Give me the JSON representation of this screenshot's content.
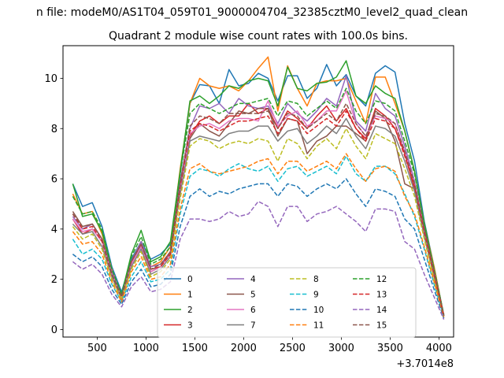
{
  "suptitle": "n file: modeM0/AS1T04_059T01_9000004704_32385cztM0_level2_quad_clean",
  "chart_data": {
    "type": "line",
    "title": "Quadrant 2 module wise count rates with 100.0s bins.",
    "xlabel": "",
    "ylabel": "",
    "x_offset_label": "+3.7014e8",
    "xlim": [
      150,
      4150
    ],
    "ylim": [
      -0.3,
      11.3
    ],
    "xticks": [
      500,
      1000,
      1500,
      2000,
      2500,
      3000,
      3500,
      4000
    ],
    "yticks": [
      0,
      2,
      4,
      6,
      8,
      10
    ],
    "grid": false,
    "legend_position": "lower-center",
    "x": [
      250,
      350,
      450,
      550,
      650,
      750,
      850,
      950,
      1050,
      1150,
      1250,
      1350,
      1450,
      1550,
      1650,
      1750,
      1850,
      1950,
      2050,
      2150,
      2250,
      2350,
      2450,
      2550,
      2650,
      2750,
      2850,
      2950,
      3050,
      3150,
      3250,
      3350,
      3450,
      3550,
      3650,
      3750,
      3850,
      3950,
      4050
    ],
    "series": [
      {
        "name": "0",
        "color": "#1f77b4",
        "dash": "solid",
        "values": [
          5.8,
          4.9,
          5.05,
          4.1,
          2.5,
          1.5,
          2.8,
          3.5,
          2.8,
          3.0,
          3.4,
          6.2,
          9.0,
          9.75,
          9.7,
          9.0,
          10.35,
          9.7,
          9.8,
          10.2,
          10.0,
          9.1,
          10.1,
          10.1,
          9.2,
          9.6,
          10.55,
          9.7,
          10.15,
          9.3,
          8.9,
          10.2,
          10.5,
          10.25,
          8.2,
          6.7,
          4.3,
          2.5,
          0.55
        ]
      },
      {
        "name": "1",
        "color": "#ff7f0e",
        "dash": "solid",
        "values": [
          5.4,
          4.6,
          4.7,
          3.8,
          2.4,
          1.3,
          2.7,
          3.5,
          2.5,
          2.7,
          3.3,
          6.4,
          9.0,
          10.0,
          9.7,
          9.6,
          9.7,
          9.5,
          9.9,
          10.4,
          10.85,
          8.7,
          10.5,
          9.6,
          8.9,
          9.8,
          9.9,
          9.9,
          10.0,
          9.1,
          8.2,
          10.05,
          10.05,
          9.0,
          7.9,
          6.3,
          4.2,
          2.5,
          0.55
        ]
      },
      {
        "name": "2",
        "color": "#2ca02c",
        "dash": "solid",
        "values": [
          5.8,
          4.5,
          4.6,
          3.9,
          2.3,
          1.4,
          3.0,
          3.95,
          2.7,
          2.9,
          3.5,
          6.3,
          9.1,
          9.3,
          9.0,
          9.3,
          9.7,
          9.6,
          9.9,
          10.0,
          9.9,
          8.9,
          10.45,
          9.6,
          9.5,
          9.8,
          9.85,
          10.05,
          10.7,
          9.3,
          9.0,
          9.7,
          9.4,
          9.2,
          7.9,
          6.3,
          4.2,
          2.4,
          0.55
        ]
      },
      {
        "name": "3",
        "color": "#d62728",
        "dash": "solid",
        "values": [
          4.4,
          3.8,
          4.0,
          3.5,
          2.2,
          1.3,
          2.6,
          3.3,
          2.3,
          2.5,
          3.0,
          5.7,
          7.7,
          8.3,
          8.5,
          8.2,
          8.5,
          8.5,
          9.0,
          8.6,
          8.8,
          8.0,
          8.7,
          8.4,
          8.0,
          8.5,
          8.9,
          8.3,
          8.8,
          8.0,
          7.6,
          8.8,
          8.5,
          8.0,
          7.0,
          5.6,
          3.9,
          2.2,
          0.55
        ]
      },
      {
        "name": "4",
        "color": "#9467bd",
        "dash": "solid",
        "values": [
          4.5,
          4.0,
          4.2,
          3.6,
          2.3,
          1.3,
          2.7,
          3.5,
          2.5,
          2.6,
          3.1,
          5.9,
          8.0,
          8.9,
          8.8,
          9.0,
          8.6,
          9.2,
          8.9,
          8.8,
          8.9,
          8.2,
          9.0,
          8.6,
          8.3,
          8.7,
          9.2,
          8.9,
          10.1,
          8.3,
          7.9,
          9.4,
          8.8,
          8.5,
          7.3,
          5.9,
          4.0,
          2.3,
          0.55
        ]
      },
      {
        "name": "5",
        "color": "#8c564b",
        "dash": "solid",
        "values": [
          4.7,
          4.1,
          4.2,
          3.6,
          2.2,
          1.3,
          2.7,
          3.4,
          2.4,
          2.5,
          3.1,
          5.8,
          7.6,
          8.2,
          7.9,
          7.7,
          8.2,
          8.7,
          8.6,
          8.8,
          8.8,
          7.7,
          8.4,
          8.3,
          7.0,
          7.5,
          7.7,
          8.1,
          8.1,
          7.8,
          7.5,
          8.7,
          8.4,
          7.5,
          5.8,
          5.6,
          4.0,
          2.2,
          0.55
        ]
      },
      {
        "name": "6",
        "color": "#e377c2",
        "dash": "solid",
        "values": [
          4.4,
          3.9,
          4.0,
          3.5,
          2.2,
          1.3,
          2.6,
          3.3,
          2.3,
          2.5,
          3.0,
          5.6,
          7.8,
          8.1,
          8.2,
          8.0,
          8.3,
          8.4,
          8.4,
          8.3,
          9.1,
          8.1,
          8.5,
          8.7,
          8.1,
          8.3,
          8.7,
          8.7,
          9.5,
          8.2,
          7.7,
          8.5,
          8.4,
          8.2,
          7.1,
          5.8,
          3.9,
          2.2,
          0.55
        ]
      },
      {
        "name": "7",
        "color": "#7f7f7f",
        "dash": "solid",
        "values": [
          4.2,
          3.8,
          3.9,
          3.3,
          2.1,
          1.2,
          2.5,
          3.2,
          2.2,
          2.4,
          2.9,
          5.4,
          7.5,
          7.7,
          7.6,
          7.5,
          7.8,
          7.9,
          7.9,
          8.1,
          8.1,
          7.5,
          7.9,
          8.0,
          7.4,
          7.7,
          8.1,
          7.8,
          8.4,
          7.7,
          7.2,
          8.1,
          8.0,
          7.7,
          6.7,
          5.5,
          3.7,
          2.1,
          0.55
        ]
      },
      {
        "name": "8",
        "color": "#bcbd22",
        "dash": "dashed",
        "values": [
          4.1,
          3.6,
          3.8,
          3.2,
          2.0,
          1.2,
          2.4,
          3.1,
          2.1,
          2.3,
          2.8,
          5.2,
          7.3,
          7.6,
          7.5,
          7.2,
          7.4,
          7.5,
          7.4,
          7.6,
          7.5,
          6.7,
          7.6,
          7.4,
          6.8,
          7.3,
          7.6,
          7.2,
          8.0,
          7.3,
          6.8,
          7.8,
          7.6,
          7.4,
          6.4,
          5.3,
          3.6,
          2.0,
          0.5
        ]
      },
      {
        "name": "9",
        "color": "#17becf",
        "dash": "dashed",
        "values": [
          3.6,
          3.0,
          3.2,
          2.8,
          1.8,
          1.1,
          2.1,
          2.7,
          1.9,
          2.0,
          2.4,
          4.6,
          6.1,
          6.4,
          6.3,
          6.1,
          6.4,
          6.6,
          6.4,
          6.3,
          6.5,
          5.9,
          6.4,
          6.5,
          6.1,
          6.3,
          6.5,
          6.2,
          6.9,
          6.2,
          5.9,
          6.5,
          6.5,
          6.2,
          5.4,
          4.5,
          3.2,
          1.8,
          0.5
        ]
      },
      {
        "name": "10",
        "color": "#1f77b4",
        "dash": "dashed",
        "values": [
          3.0,
          2.7,
          2.9,
          2.5,
          1.6,
          1.0,
          1.9,
          2.4,
          1.7,
          1.8,
          2.2,
          4.1,
          5.3,
          5.6,
          5.3,
          5.5,
          5.4,
          5.6,
          5.7,
          5.8,
          5.8,
          5.3,
          5.8,
          5.7,
          5.3,
          5.6,
          5.8,
          5.6,
          6.0,
          5.4,
          4.9,
          5.6,
          5.5,
          5.3,
          4.4,
          4.0,
          2.8,
          1.6,
          0.45
        ]
      },
      {
        "name": "11",
        "color": "#ff7f0e",
        "dash": "dashed",
        "values": [
          3.9,
          3.4,
          3.5,
          3.0,
          1.9,
          1.1,
          2.3,
          2.9,
          2.0,
          2.1,
          2.6,
          4.8,
          6.4,
          6.6,
          6.3,
          6.2,
          6.3,
          6.4,
          6.5,
          6.7,
          6.8,
          6.2,
          6.7,
          6.7,
          6.3,
          6.5,
          6.7,
          6.4,
          7.0,
          6.4,
          5.9,
          6.4,
          6.5,
          6.3,
          5.3,
          4.6,
          3.3,
          1.9,
          0.5
        ]
      },
      {
        "name": "12",
        "color": "#2ca02c",
        "dash": "dashed",
        "values": [
          5.3,
          4.6,
          4.7,
          4.0,
          2.4,
          1.4,
          2.9,
          3.7,
          2.6,
          2.8,
          3.3,
          6.2,
          8.6,
          9.0,
          8.8,
          8.6,
          8.8,
          9.0,
          9.0,
          9.1,
          9.2,
          8.5,
          9.1,
          9.0,
          8.5,
          8.8,
          9.1,
          8.8,
          9.6,
          8.7,
          8.2,
          9.1,
          9.0,
          8.7,
          7.5,
          6.2,
          4.2,
          2.4,
          0.6
        ]
      },
      {
        "name": "13",
        "color": "#d62728",
        "dash": "dashed",
        "values": [
          4.6,
          4.0,
          4.1,
          3.5,
          2.2,
          1.3,
          2.7,
          3.4,
          2.4,
          2.5,
          3.0,
          5.7,
          7.9,
          8.2,
          8.1,
          7.9,
          8.1,
          8.3,
          8.3,
          8.4,
          8.5,
          7.8,
          8.4,
          8.3,
          7.8,
          8.1,
          8.4,
          8.1,
          8.7,
          8.0,
          7.5,
          8.4,
          8.3,
          8.0,
          6.9,
          5.7,
          3.9,
          2.2,
          0.55
        ]
      },
      {
        "name": "14",
        "color": "#9467bd",
        "dash": "dashed",
        "values": [
          2.7,
          2.4,
          2.6,
          2.2,
          1.4,
          0.9,
          1.7,
          2.1,
          1.5,
          1.6,
          1.9,
          3.6,
          4.4,
          4.4,
          4.3,
          4.4,
          4.7,
          4.5,
          4.6,
          5.1,
          4.9,
          4.1,
          4.9,
          4.9,
          4.3,
          4.6,
          4.7,
          4.9,
          4.6,
          4.3,
          3.9,
          4.8,
          4.8,
          4.7,
          3.5,
          3.2,
          2.2,
          1.3,
          0.4
        ]
      },
      {
        "name": "15",
        "color": "#8c564b",
        "dash": "dashed",
        "values": [
          4.6,
          4.1,
          4.2,
          3.6,
          2.2,
          1.3,
          2.7,
          3.4,
          2.4,
          2.6,
          3.1,
          5.8,
          8.1,
          8.5,
          8.4,
          8.2,
          8.6,
          8.6,
          8.6,
          8.6,
          8.7,
          8.0,
          8.6,
          8.5,
          8.0,
          8.3,
          8.6,
          8.3,
          9.0,
          8.2,
          7.7,
          8.6,
          8.5,
          8.2,
          7.1,
          5.8,
          4.0,
          2.3,
          0.55
        ]
      }
    ]
  }
}
